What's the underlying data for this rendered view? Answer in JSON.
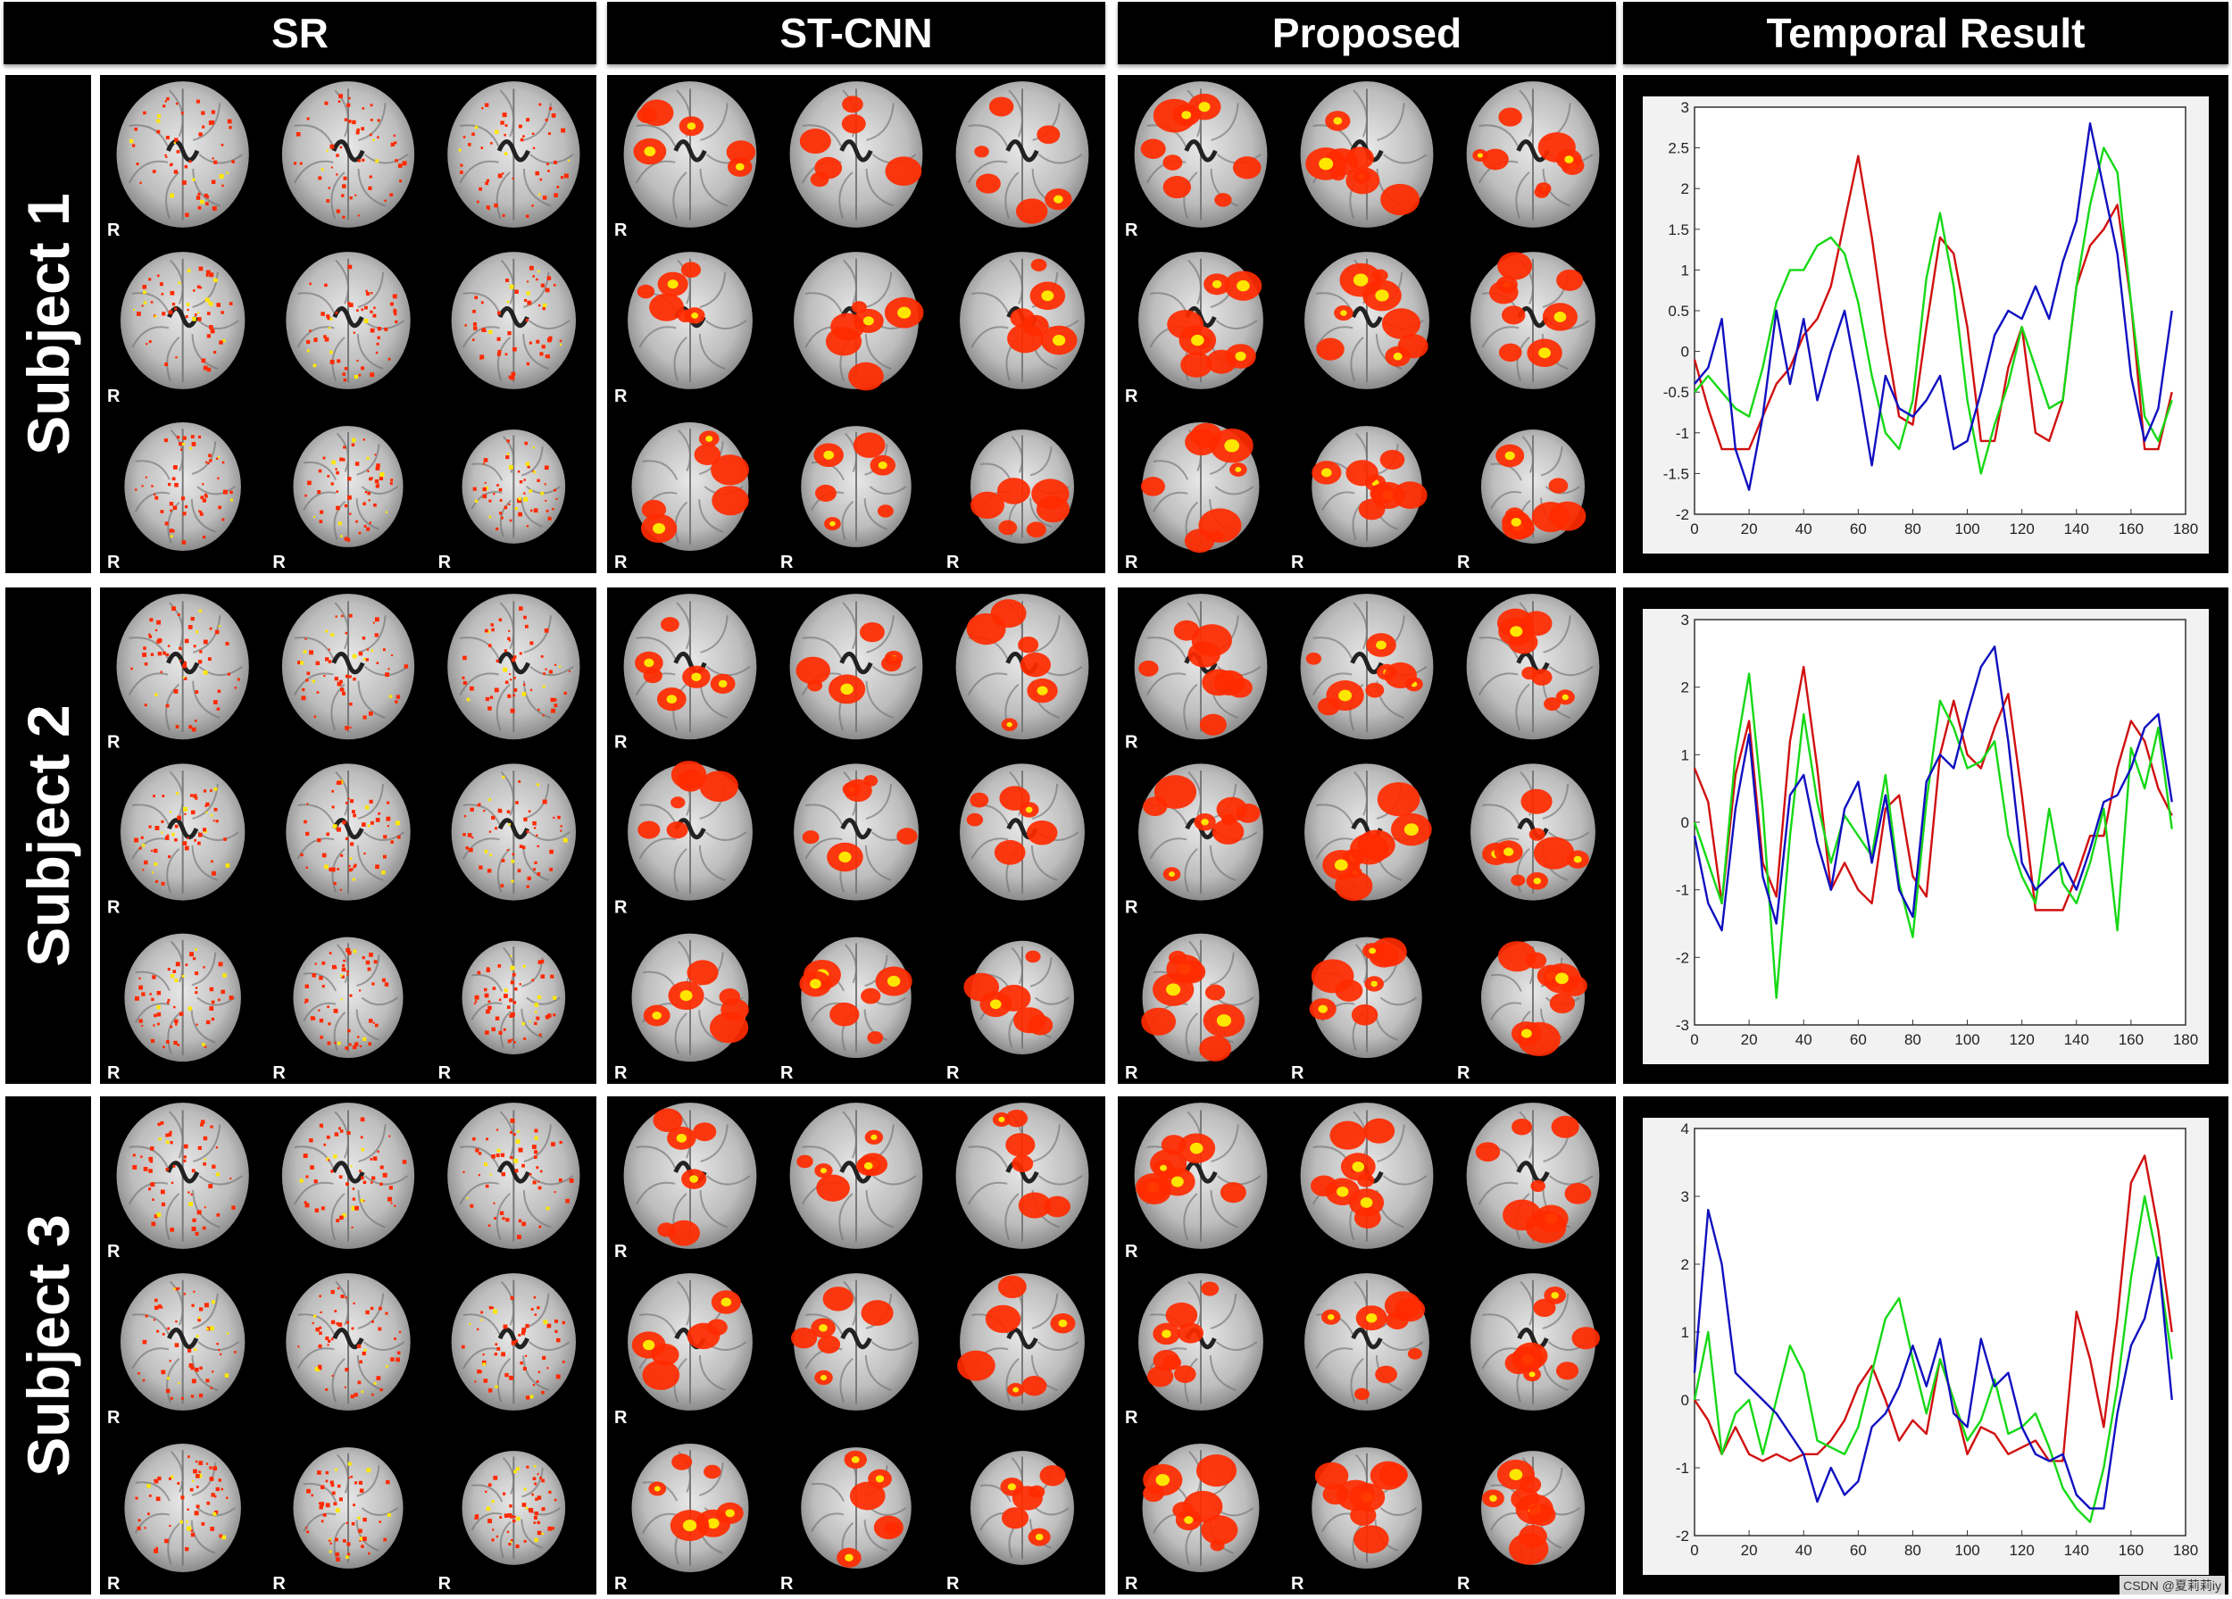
{
  "columns": [
    "SR",
    "ST-CNN",
    "Proposed",
    "Temporal Result"
  ],
  "rows": [
    "Subject 1",
    "Subject 2",
    "Subject 3"
  ],
  "orientation_marker": "R",
  "watermark": "CSDN @夏莉莉iy",
  "colors": {
    "activation_hot": "#ff2a00",
    "activation_peak": "#ffe600",
    "series_red": "#d01010",
    "series_green": "#16d816",
    "series_blue": "#1010c0"
  },
  "chart_data": [
    {
      "type": "line",
      "ylim": [
        -2,
        3
      ],
      "yticks": [
        -2,
        -1.5,
        -1,
        -0.5,
        0,
        0.5,
        1,
        1.5,
        2,
        2.5,
        3
      ],
      "xlim": [
        0,
        180
      ],
      "xticks": [
        0,
        20,
        40,
        60,
        80,
        100,
        120,
        140,
        160,
        180
      ],
      "series": [
        {
          "color": "red",
          "x": [
            0,
            5,
            10,
            15,
            20,
            25,
            30,
            35,
            40,
            45,
            50,
            55,
            60,
            65,
            70,
            75,
            80,
            85,
            90,
            95,
            100,
            105,
            110,
            115,
            120,
            125,
            130,
            135,
            140,
            145,
            150,
            155,
            160,
            165,
            170,
            175
          ],
          "y": [
            -0.1,
            -0.7,
            -1.2,
            -1.2,
            -1.2,
            -0.8,
            -0.4,
            -0.2,
            0.2,
            0.4,
            0.8,
            1.6,
            2.4,
            1.4,
            0.2,
            -0.8,
            -0.9,
            0.3,
            1.4,
            1.2,
            0.3,
            -1.1,
            -1.1,
            -0.2,
            0.3,
            -1.0,
            -1.1,
            -0.6,
            0.8,
            1.3,
            1.5,
            1.8,
            0.6,
            -1.2,
            -1.2,
            -0.5
          ]
        },
        {
          "color": "green",
          "x": [
            0,
            5,
            10,
            15,
            20,
            25,
            30,
            35,
            40,
            45,
            50,
            55,
            60,
            65,
            70,
            75,
            80,
            85,
            90,
            95,
            100,
            105,
            110,
            115,
            120,
            125,
            130,
            135,
            140,
            145,
            150,
            155,
            160,
            165,
            170,
            175
          ],
          "y": [
            -0.5,
            -0.3,
            -0.5,
            -0.7,
            -0.8,
            -0.2,
            0.6,
            1.0,
            1.0,
            1.3,
            1.4,
            1.2,
            0.6,
            -0.3,
            -1.0,
            -1.2,
            -0.6,
            0.9,
            1.7,
            0.8,
            -0.6,
            -1.5,
            -0.9,
            -0.4,
            0.3,
            -0.2,
            -0.7,
            -0.6,
            0.8,
            1.8,
            2.5,
            2.2,
            0.6,
            -0.8,
            -1.1,
            -0.6
          ]
        },
        {
          "color": "blue",
          "x": [
            0,
            5,
            10,
            15,
            20,
            25,
            30,
            35,
            40,
            45,
            50,
            55,
            60,
            65,
            70,
            75,
            80,
            85,
            90,
            95,
            100,
            105,
            110,
            115,
            120,
            125,
            130,
            135,
            140,
            145,
            150,
            155,
            160,
            165,
            170,
            175
          ],
          "y": [
            -0.4,
            -0.2,
            0.4,
            -1.2,
            -1.7,
            -0.8,
            0.5,
            -0.4,
            0.4,
            -0.6,
            0.0,
            0.5,
            -0.4,
            -1.4,
            -0.3,
            -0.7,
            -0.8,
            -0.6,
            -0.3,
            -1.2,
            -1.1,
            -0.5,
            0.2,
            0.5,
            0.4,
            0.8,
            0.4,
            1.1,
            1.6,
            2.8,
            2.0,
            1.2,
            -0.3,
            -1.1,
            -0.7,
            0.5
          ]
        }
      ]
    },
    {
      "type": "line",
      "ylim": [
        -3,
        3
      ],
      "yticks": [
        -3,
        -2,
        -1,
        0,
        1,
        2,
        3
      ],
      "xlim": [
        0,
        180
      ],
      "xticks": [
        0,
        20,
        40,
        60,
        80,
        100,
        120,
        140,
        160,
        180
      ],
      "series": [
        {
          "color": "red",
          "x": [
            0,
            5,
            10,
            15,
            20,
            25,
            30,
            35,
            40,
            45,
            50,
            55,
            60,
            65,
            70,
            75,
            80,
            85,
            90,
            95,
            100,
            105,
            110,
            115,
            120,
            125,
            130,
            135,
            140,
            145,
            150,
            155,
            160,
            165,
            170,
            175
          ],
          "y": [
            0.8,
            0.3,
            -1.2,
            0.7,
            1.5,
            -0.6,
            -1.1,
            1.2,
            2.3,
            0.8,
            -1.0,
            -0.6,
            -1.0,
            -1.2,
            0.2,
            0.4,
            -0.8,
            -1.1,
            1.0,
            1.8,
            1.0,
            0.8,
            1.4,
            1.9,
            0.4,
            -1.3,
            -1.3,
            -1.3,
            -0.8,
            -0.2,
            -0.2,
            0.8,
            1.5,
            1.2,
            0.5,
            0.1
          ]
        },
        {
          "color": "green",
          "x": [
            0,
            5,
            10,
            15,
            20,
            25,
            30,
            35,
            40,
            45,
            50,
            55,
            60,
            65,
            70,
            75,
            80,
            85,
            90,
            95,
            100,
            105,
            110,
            115,
            120,
            125,
            130,
            135,
            140,
            145,
            150,
            155,
            160,
            165,
            170,
            175
          ],
          "y": [
            0.0,
            -0.6,
            -1.2,
            1.0,
            2.2,
            0.2,
            -2.6,
            -0.2,
            1.6,
            0.3,
            -0.6,
            0.1,
            -0.2,
            -0.5,
            0.7,
            -0.9,
            -1.7,
            0.3,
            1.8,
            1.4,
            0.8,
            0.9,
            1.2,
            -0.2,
            -0.8,
            -1.2,
            0.2,
            -0.9,
            -1.2,
            -0.6,
            0.2,
            -1.6,
            1.1,
            0.5,
            1.4,
            -0.1
          ]
        },
        {
          "color": "blue",
          "x": [
            0,
            5,
            10,
            15,
            20,
            25,
            30,
            35,
            40,
            45,
            50,
            55,
            60,
            65,
            70,
            75,
            80,
            85,
            90,
            95,
            100,
            105,
            110,
            115,
            120,
            125,
            130,
            135,
            140,
            145,
            150,
            155,
            160,
            165,
            170,
            175
          ],
          "y": [
            -0.2,
            -1.2,
            -1.6,
            0.2,
            1.3,
            -0.8,
            -1.5,
            0.4,
            0.7,
            -0.3,
            -1.0,
            0.2,
            0.6,
            -0.6,
            0.4,
            -1.0,
            -1.4,
            0.6,
            1.0,
            0.8,
            1.6,
            2.3,
            2.6,
            1.2,
            -0.6,
            -1.0,
            -0.8,
            -0.6,
            -1.0,
            -0.4,
            0.3,
            0.4,
            0.8,
            1.4,
            1.6,
            0.3
          ]
        }
      ]
    },
    {
      "type": "line",
      "ylim": [
        -2,
        4
      ],
      "yticks": [
        -2,
        -1,
        0,
        1,
        2,
        3,
        4
      ],
      "xlim": [
        0,
        180
      ],
      "xticks": [
        0,
        20,
        40,
        60,
        80,
        100,
        120,
        140,
        160,
        180
      ],
      "series": [
        {
          "color": "red",
          "x": [
            0,
            5,
            10,
            15,
            20,
            25,
            30,
            35,
            40,
            45,
            50,
            55,
            60,
            65,
            70,
            75,
            80,
            85,
            90,
            95,
            100,
            105,
            110,
            115,
            120,
            125,
            130,
            135,
            140,
            145,
            150,
            155,
            160,
            165,
            170,
            175
          ],
          "y": [
            0.0,
            -0.3,
            -0.8,
            -0.4,
            -0.8,
            -0.9,
            -0.8,
            -0.9,
            -0.8,
            -0.8,
            -0.6,
            -0.3,
            0.2,
            0.5,
            0.0,
            -0.6,
            -0.3,
            -0.5,
            0.6,
            0.0,
            -0.8,
            -0.4,
            -0.5,
            -0.8,
            -0.7,
            -0.6,
            -0.9,
            -0.9,
            1.3,
            0.6,
            -0.4,
            1.2,
            3.2,
            3.6,
            2.5,
            1.0
          ]
        },
        {
          "color": "green",
          "x": [
            0,
            5,
            10,
            15,
            20,
            25,
            30,
            35,
            40,
            45,
            50,
            55,
            60,
            65,
            70,
            75,
            80,
            85,
            90,
            95,
            100,
            105,
            110,
            115,
            120,
            125,
            130,
            135,
            140,
            145,
            150,
            155,
            160,
            165,
            170,
            175
          ],
          "y": [
            0.0,
            1.0,
            -0.8,
            -0.2,
            0.0,
            -0.8,
            0.0,
            0.8,
            0.4,
            -0.6,
            -0.7,
            -0.8,
            -0.4,
            0.4,
            1.2,
            1.5,
            0.6,
            -0.2,
            0.6,
            0.0,
            -0.6,
            -0.3,
            0.3,
            -0.5,
            -0.4,
            -0.2,
            -0.7,
            -1.3,
            -1.6,
            -1.8,
            -1.0,
            0.2,
            1.8,
            3.0,
            2.0,
            0.6
          ]
        },
        {
          "color": "blue",
          "x": [
            0,
            5,
            10,
            15,
            20,
            25,
            30,
            35,
            40,
            45,
            50,
            55,
            60,
            65,
            70,
            75,
            80,
            85,
            90,
            95,
            100,
            105,
            110,
            115,
            120,
            125,
            130,
            135,
            140,
            145,
            150,
            155,
            160,
            165,
            170,
            175
          ],
          "y": [
            0.4,
            2.8,
            2.0,
            0.4,
            0.2,
            0.0,
            -0.2,
            -0.5,
            -0.8,
            -1.5,
            -1.0,
            -1.4,
            -1.2,
            -0.4,
            -0.2,
            0.2,
            0.8,
            0.2,
            0.9,
            -0.2,
            -0.4,
            0.9,
            0.2,
            0.4,
            -0.4,
            -0.8,
            -0.9,
            -0.8,
            -1.4,
            -1.6,
            -1.6,
            -0.2,
            0.8,
            1.2,
            2.1,
            0.0
          ]
        }
      ]
    }
  ]
}
